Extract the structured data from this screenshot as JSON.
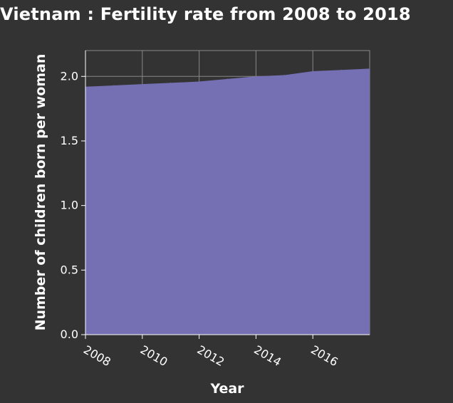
{
  "chart_data": {
    "type": "area",
    "title": "Vietnam : Fertility rate from 2008 to 2018",
    "xlabel": "Year",
    "ylabel": "Number of children born per woman",
    "x": [
      2008,
      2009,
      2010,
      2011,
      2012,
      2013,
      2014,
      2015,
      2016,
      2017,
      2018
    ],
    "values": [
      1.92,
      1.93,
      1.94,
      1.95,
      1.96,
      1.98,
      2.0,
      2.01,
      2.04,
      2.05,
      2.06
    ],
    "xlim": [
      2008,
      2018
    ],
    "ylim": [
      0,
      2.2
    ],
    "x_ticks": [
      "2008",
      "2010",
      "2012",
      "2014",
      "2016"
    ],
    "y_ticks": [
      "0.0",
      "0.5",
      "1.0",
      "1.5",
      "2.0"
    ],
    "grid": true,
    "colors": {
      "background": "#333333",
      "fill": "#7570b3",
      "grid": "#888888",
      "text": "#ffffff"
    }
  }
}
